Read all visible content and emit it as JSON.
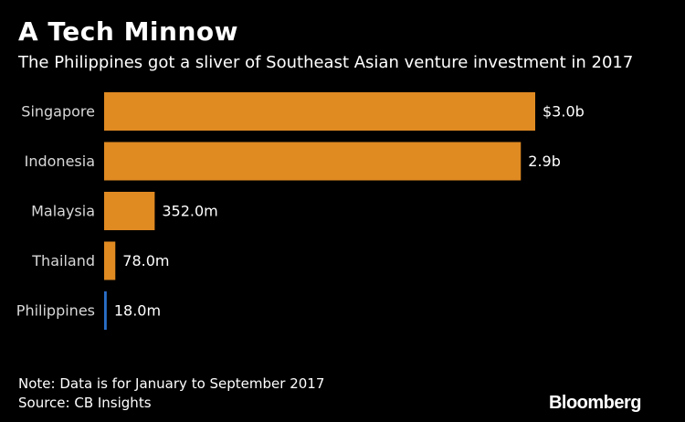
{
  "header": {
    "title": "A Tech Minnow",
    "subtitle": "The Philippines got a sliver of Southeast Asian venture investment in 2017"
  },
  "footer": {
    "note": "Note: Data is for January to September 2017",
    "source": "Source: CB Insights",
    "logo": "Bloomberg"
  },
  "chart_data": {
    "type": "bar",
    "orientation": "horizontal",
    "title": "A Tech Minnow",
    "subtitle": "The Philippines got a sliver of Southeast Asian venture investment in 2017",
    "unit": "USD",
    "categories": [
      "Singapore",
      "Indonesia",
      "Malaysia",
      "Thailand",
      "Philippines"
    ],
    "values": [
      3000000000,
      2900000000,
      352000000,
      78000000,
      18000000
    ],
    "value_labels": [
      "$3.0b",
      "2.9b",
      "352.0m",
      "78.0m",
      "18.0m"
    ],
    "xlim": [
      0,
      3000000000
    ],
    "grid": false,
    "bar_colors": [
      "#e08a22",
      "#e08a22",
      "#e08a22",
      "#e08a22",
      "#2a6fc9"
    ]
  },
  "colors": {
    "background": "#000000",
    "bar": "#e08a22",
    "highlight_bar": "#2a6fc9",
    "text": "#ffffff"
  }
}
